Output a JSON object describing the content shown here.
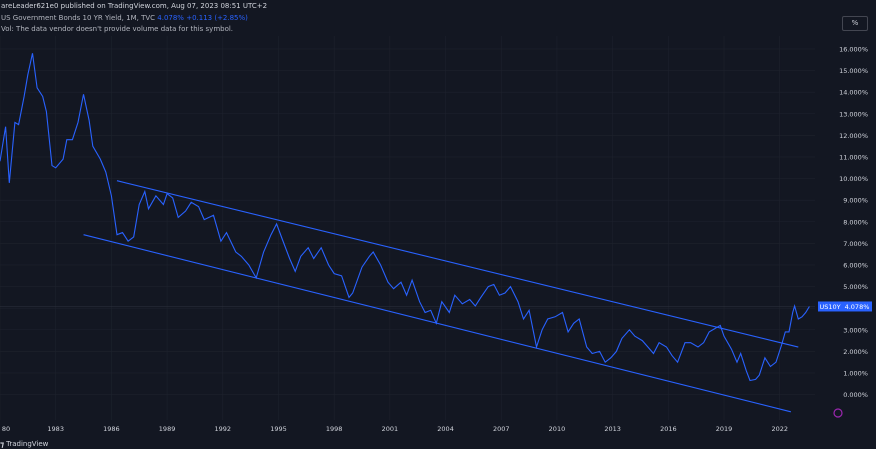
{
  "header": {
    "text": "areLeader621e0 published on TradingView.com, Aug 07, 2023 08:51 UTC+2"
  },
  "legend": {
    "symbol": "US Government Bonds 10 YR Yield, 1M, TVC",
    "value": "4.078%",
    "change": "+0.113 (+2.85%)",
    "vol_note": "Vol: The data vendor doesn't provide volume data for this symbol."
  },
  "scale_button": "%",
  "price_label": {
    "symbol": "US10Y",
    "value": "4.078%"
  },
  "footer": {
    "brand": "TradingView"
  },
  "colors": {
    "background": "#131722",
    "line": "#2962ff",
    "channel": "#2962ff",
    "grid": "#1e222d",
    "text": "#d1d4dc"
  },
  "chart_data": {
    "type": "line",
    "series": [
      {
        "values": [
          [
            1980.0,
            10.8
          ],
          [
            1980.3,
            12.4
          ],
          [
            1980.5,
            9.8
          ],
          [
            1980.8,
            12.6
          ],
          [
            1981.0,
            12.5
          ],
          [
            1981.3,
            13.8
          ],
          [
            1981.5,
            14.8
          ],
          [
            1981.75,
            15.8
          ],
          [
            1982.0,
            14.2
          ],
          [
            1982.3,
            13.8
          ],
          [
            1982.5,
            13.1
          ],
          [
            1982.8,
            10.6
          ],
          [
            1983.0,
            10.5
          ],
          [
            1983.4,
            10.9
          ],
          [
            1983.6,
            11.8
          ],
          [
            1983.9,
            11.8
          ],
          [
            1984.2,
            12.6
          ],
          [
            1984.5,
            13.9
          ],
          [
            1984.8,
            12.7
          ],
          [
            1985.0,
            11.5
          ],
          [
            1985.4,
            10.9
          ],
          [
            1985.7,
            10.3
          ],
          [
            1986.0,
            9.2
          ],
          [
            1986.3,
            7.4
          ],
          [
            1986.6,
            7.5
          ],
          [
            1986.9,
            7.1
          ],
          [
            1987.2,
            7.3
          ],
          [
            1987.5,
            8.8
          ],
          [
            1987.8,
            9.4
          ],
          [
            1988.0,
            8.6
          ],
          [
            1988.4,
            9.2
          ],
          [
            1988.8,
            8.8
          ],
          [
            1989.0,
            9.3
          ],
          [
            1989.3,
            9.1
          ],
          [
            1989.6,
            8.2
          ],
          [
            1990.0,
            8.5
          ],
          [
            1990.3,
            8.9
          ],
          [
            1990.7,
            8.7
          ],
          [
            1991.0,
            8.1
          ],
          [
            1991.5,
            8.3
          ],
          [
            1991.9,
            7.1
          ],
          [
            1992.2,
            7.5
          ],
          [
            1992.7,
            6.6
          ],
          [
            1993.0,
            6.4
          ],
          [
            1993.4,
            6.0
          ],
          [
            1993.8,
            5.4
          ],
          [
            1994.2,
            6.6
          ],
          [
            1994.6,
            7.4
          ],
          [
            1994.9,
            7.9
          ],
          [
            1995.2,
            7.2
          ],
          [
            1995.6,
            6.3
          ],
          [
            1995.9,
            5.7
          ],
          [
            1996.2,
            6.4
          ],
          [
            1996.6,
            6.8
          ],
          [
            1996.9,
            6.3
          ],
          [
            1997.3,
            6.8
          ],
          [
            1997.7,
            6.0
          ],
          [
            1998.0,
            5.6
          ],
          [
            1998.4,
            5.5
          ],
          [
            1998.8,
            4.5
          ],
          [
            1999.0,
            4.7
          ],
          [
            1999.5,
            5.9
          ],
          [
            1999.9,
            6.4
          ],
          [
            2000.1,
            6.6
          ],
          [
            2000.5,
            6.0
          ],
          [
            2000.9,
            5.2
          ],
          [
            2001.2,
            4.9
          ],
          [
            2001.6,
            5.2
          ],
          [
            2001.9,
            4.6
          ],
          [
            2002.2,
            5.3
          ],
          [
            2002.6,
            4.3
          ],
          [
            2002.9,
            3.8
          ],
          [
            2003.2,
            3.9
          ],
          [
            2003.5,
            3.3
          ],
          [
            2003.8,
            4.3
          ],
          [
            2004.2,
            3.8
          ],
          [
            2004.5,
            4.6
          ],
          [
            2004.9,
            4.2
          ],
          [
            2005.3,
            4.4
          ],
          [
            2005.6,
            4.1
          ],
          [
            2005.9,
            4.5
          ],
          [
            2006.3,
            5.0
          ],
          [
            2006.6,
            5.1
          ],
          [
            2006.9,
            4.6
          ],
          [
            2007.2,
            4.7
          ],
          [
            2007.5,
            5.0
          ],
          [
            2007.9,
            4.3
          ],
          [
            2008.2,
            3.5
          ],
          [
            2008.5,
            3.9
          ],
          [
            2008.9,
            2.2
          ],
          [
            2009.2,
            3.0
          ],
          [
            2009.5,
            3.5
          ],
          [
            2009.9,
            3.6
          ],
          [
            2010.3,
            3.8
          ],
          [
            2010.6,
            2.9
          ],
          [
            2010.9,
            3.3
          ],
          [
            2011.2,
            3.5
          ],
          [
            2011.6,
            2.2
          ],
          [
            2011.9,
            1.9
          ],
          [
            2012.3,
            2.0
          ],
          [
            2012.6,
            1.5
          ],
          [
            2012.9,
            1.7
          ],
          [
            2013.2,
            2.0
          ],
          [
            2013.5,
            2.6
          ],
          [
            2013.9,
            3.0
          ],
          [
            2014.2,
            2.7
          ],
          [
            2014.6,
            2.5
          ],
          [
            2014.9,
            2.2
          ],
          [
            2015.2,
            1.9
          ],
          [
            2015.5,
            2.4
          ],
          [
            2015.9,
            2.2
          ],
          [
            2016.2,
            1.8
          ],
          [
            2016.5,
            1.5
          ],
          [
            2016.9,
            2.4
          ],
          [
            2017.2,
            2.4
          ],
          [
            2017.6,
            2.2
          ],
          [
            2017.9,
            2.4
          ],
          [
            2018.2,
            2.9
          ],
          [
            2018.8,
            3.2
          ],
          [
            2019.0,
            2.7
          ],
          [
            2019.4,
            2.1
          ],
          [
            2019.7,
            1.5
          ],
          [
            2019.9,
            1.9
          ],
          [
            2020.2,
            1.1
          ],
          [
            2020.4,
            0.65
          ],
          [
            2020.7,
            0.7
          ],
          [
            2020.9,
            0.9
          ],
          [
            2021.2,
            1.7
          ],
          [
            2021.5,
            1.3
          ],
          [
            2021.8,
            1.5
          ],
          [
            2022.1,
            2.3
          ],
          [
            2022.3,
            2.9
          ],
          [
            2022.5,
            2.9
          ],
          [
            2022.7,
            3.8
          ],
          [
            2022.8,
            4.1
          ],
          [
            2023.0,
            3.5
          ],
          [
            2023.2,
            3.6
          ],
          [
            2023.4,
            3.8
          ],
          [
            2023.6,
            4.078
          ]
        ]
      }
    ],
    "channel_lines": [
      {
        "start": [
          1986.3,
          9.9
        ],
        "end": [
          2023.0,
          2.2
        ]
      },
      {
        "start": [
          1984.5,
          7.4
        ],
        "end": [
          2022.6,
          -0.8
        ]
      }
    ],
    "x_ticks": [
      "80",
      "1983",
      "1986",
      "1989",
      "1992",
      "1995",
      "1998",
      "2001",
      "2004",
      "2007",
      "2010",
      "2013",
      "2016",
      "2019",
      "2022"
    ],
    "y_ticks": [
      "16.000%",
      "15.000%",
      "14.000%",
      "13.000%",
      "12.000%",
      "11.000%",
      "10.000%",
      "9.000%",
      "8.000%",
      "7.000%",
      "6.000%",
      "5.000%",
      "4.000%",
      "3.000%",
      "2.000%",
      "1.000%",
      "0.000%"
    ],
    "xlim": [
      1980.0,
      2023.9
    ],
    "ylim": [
      -0.9,
      16.6
    ],
    "grid": true,
    "legend_position": "top-left"
  }
}
